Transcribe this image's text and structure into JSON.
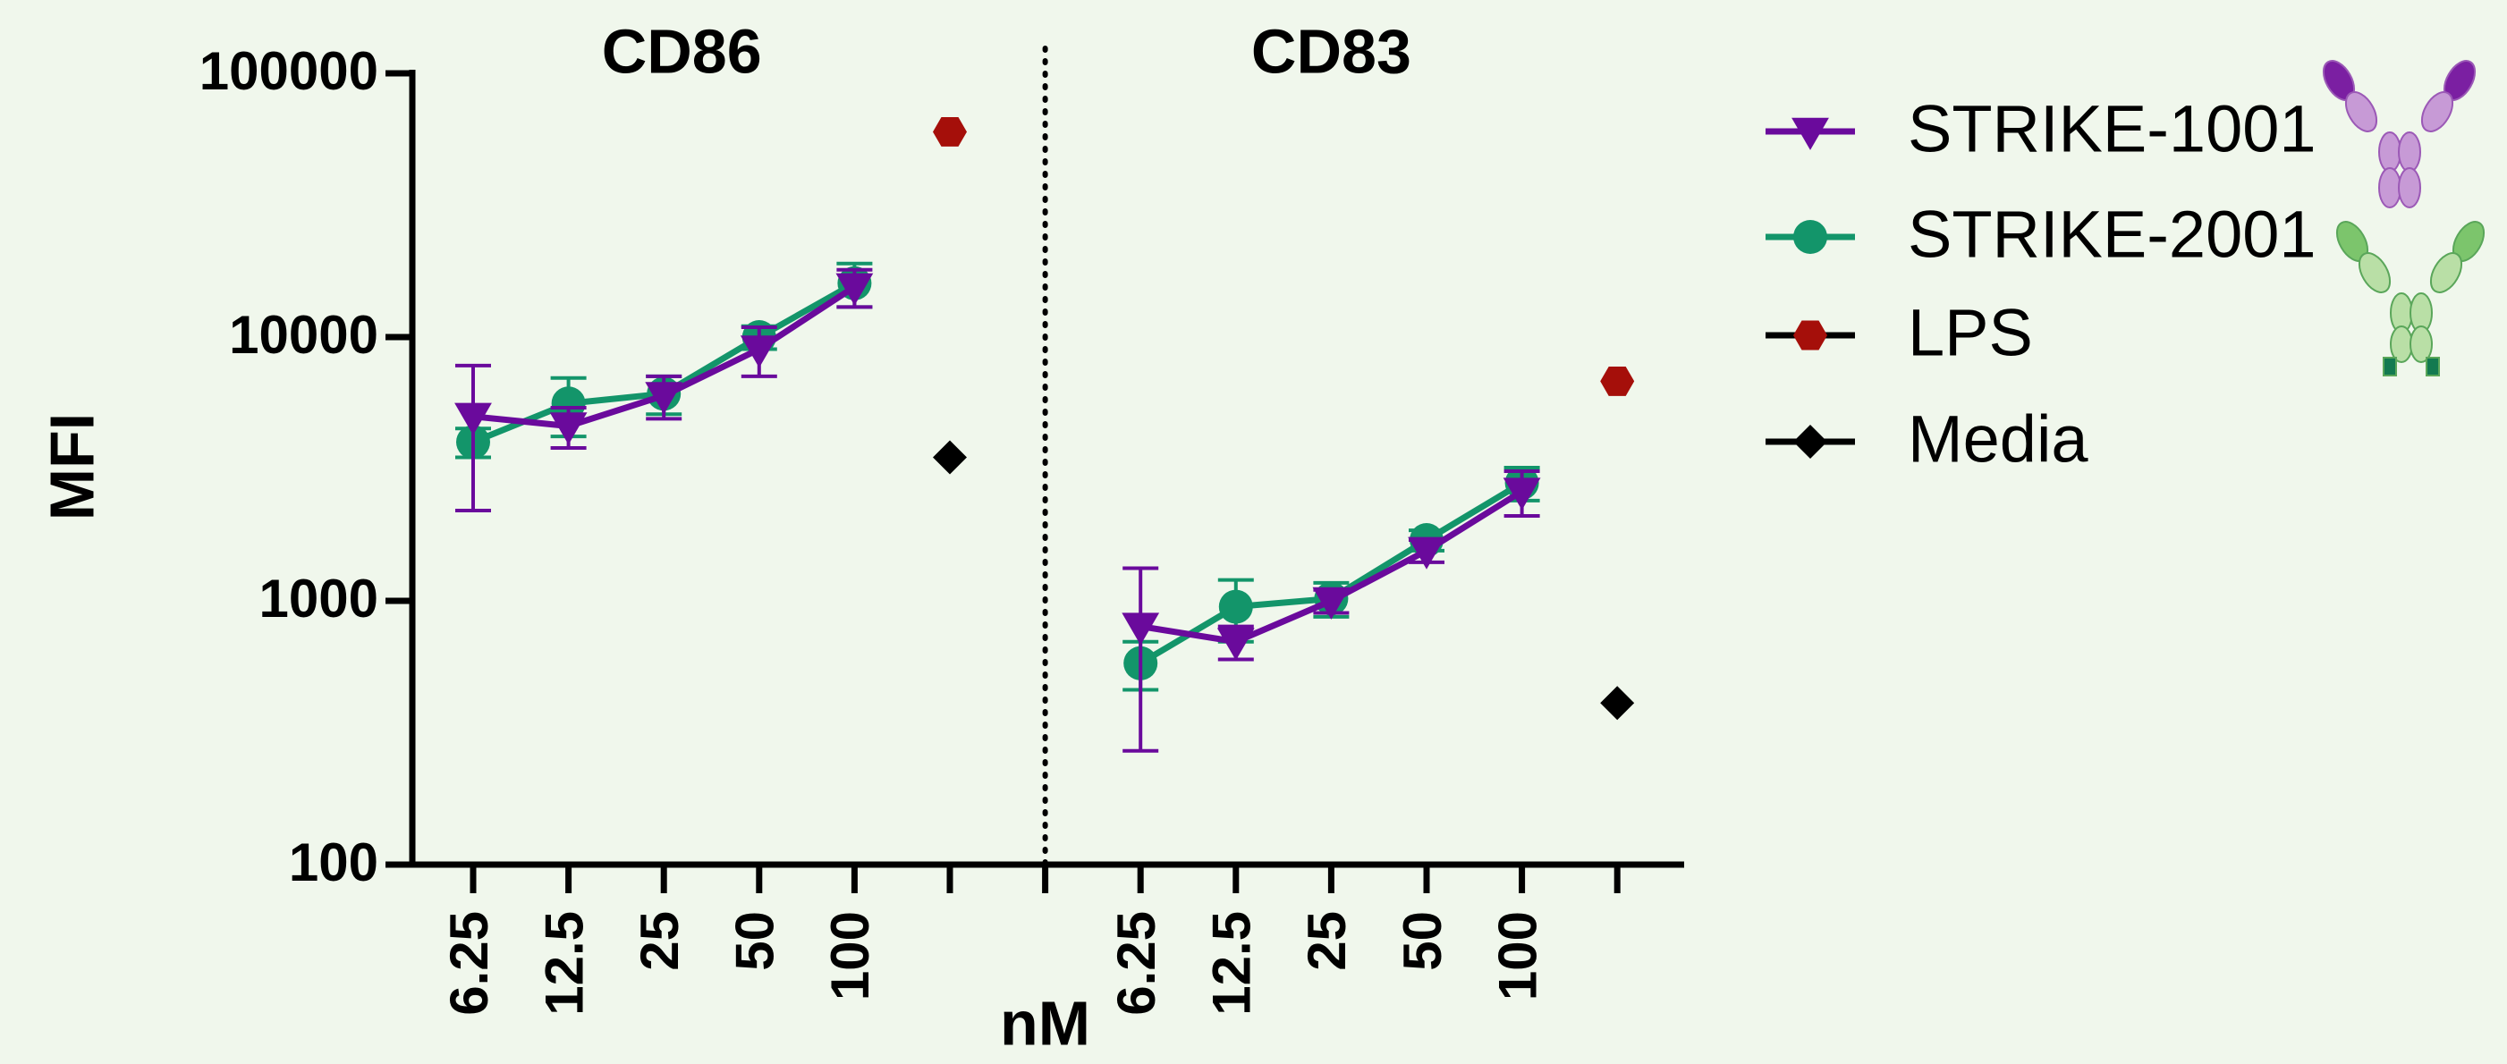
{
  "chart_data": {
    "type": "line",
    "y_label": "MFI",
    "x_label": "nM",
    "annotations": [
      "CD86",
      "CD83"
    ],
    "categories": [
      "6.25",
      "12.5",
      "25",
      "50",
      "100",
      null,
      null,
      "6.25",
      "12.5",
      "25",
      "50",
      "100",
      null
    ],
    "yscale": "log",
    "ylim": [
      100,
      100000
    ],
    "yticks": [
      100,
      1000,
      10000,
      100000
    ],
    "series": [
      {
        "name": "STRIKE-1001",
        "color": "#6a0a9c",
        "marker": "triangle-down",
        "values": [
          5000,
          4600,
          6000,
          9000,
          15500,
          null,
          null,
          800,
          700,
          1000,
          1550,
          2600,
          null
        ],
        "errors": [
          2800,
          800,
          1100,
          1900,
          2500,
          null,
          null,
          530,
          100,
          100,
          150,
          500,
          null
        ]
      },
      {
        "name": "STRIKE-2001",
        "color": "#13956a",
        "marker": "circle",
        "values": [
          4000,
          5600,
          6100,
          10000,
          16000,
          null,
          null,
          580,
          950,
          1020,
          1700,
          2800,
          null
        ],
        "errors": [
          500,
          1400,
          1000,
          1000,
          3000,
          null,
          null,
          120,
          250,
          150,
          150,
          400,
          null
        ]
      },
      {
        "name": "LPS",
        "color": "#a50f0a",
        "marker": "hexagon",
        "values": [
          null,
          null,
          null,
          null,
          null,
          60000,
          null,
          null,
          null,
          null,
          null,
          null,
          6800
        ]
      },
      {
        "name": "Media",
        "color": "#000000",
        "marker": "diamond",
        "values": [
          null,
          null,
          null,
          null,
          null,
          3500,
          null,
          null,
          null,
          null,
          null,
          null,
          410
        ]
      }
    ]
  }
}
